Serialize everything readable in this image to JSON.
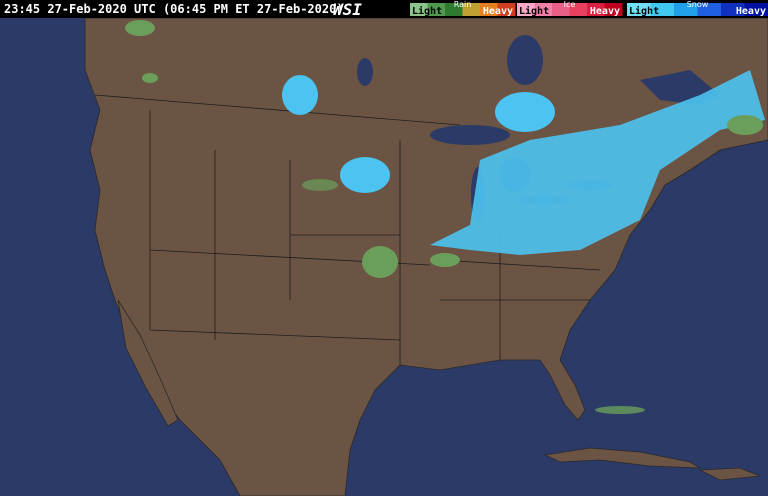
{
  "header": {
    "timestamp": "23:45 27-Feb-2020 UTC (06:45 PM ET 27-Feb-2020)",
    "logo": "WSI"
  },
  "legend": [
    {
      "name": "Rain",
      "light": "Light",
      "heavy": "Heavy"
    },
    {
      "name": "Ice",
      "light": "Light",
      "heavy": "Heavy"
    },
    {
      "name": "Snow",
      "light": "Light",
      "heavy": "Heavy"
    }
  ]
}
